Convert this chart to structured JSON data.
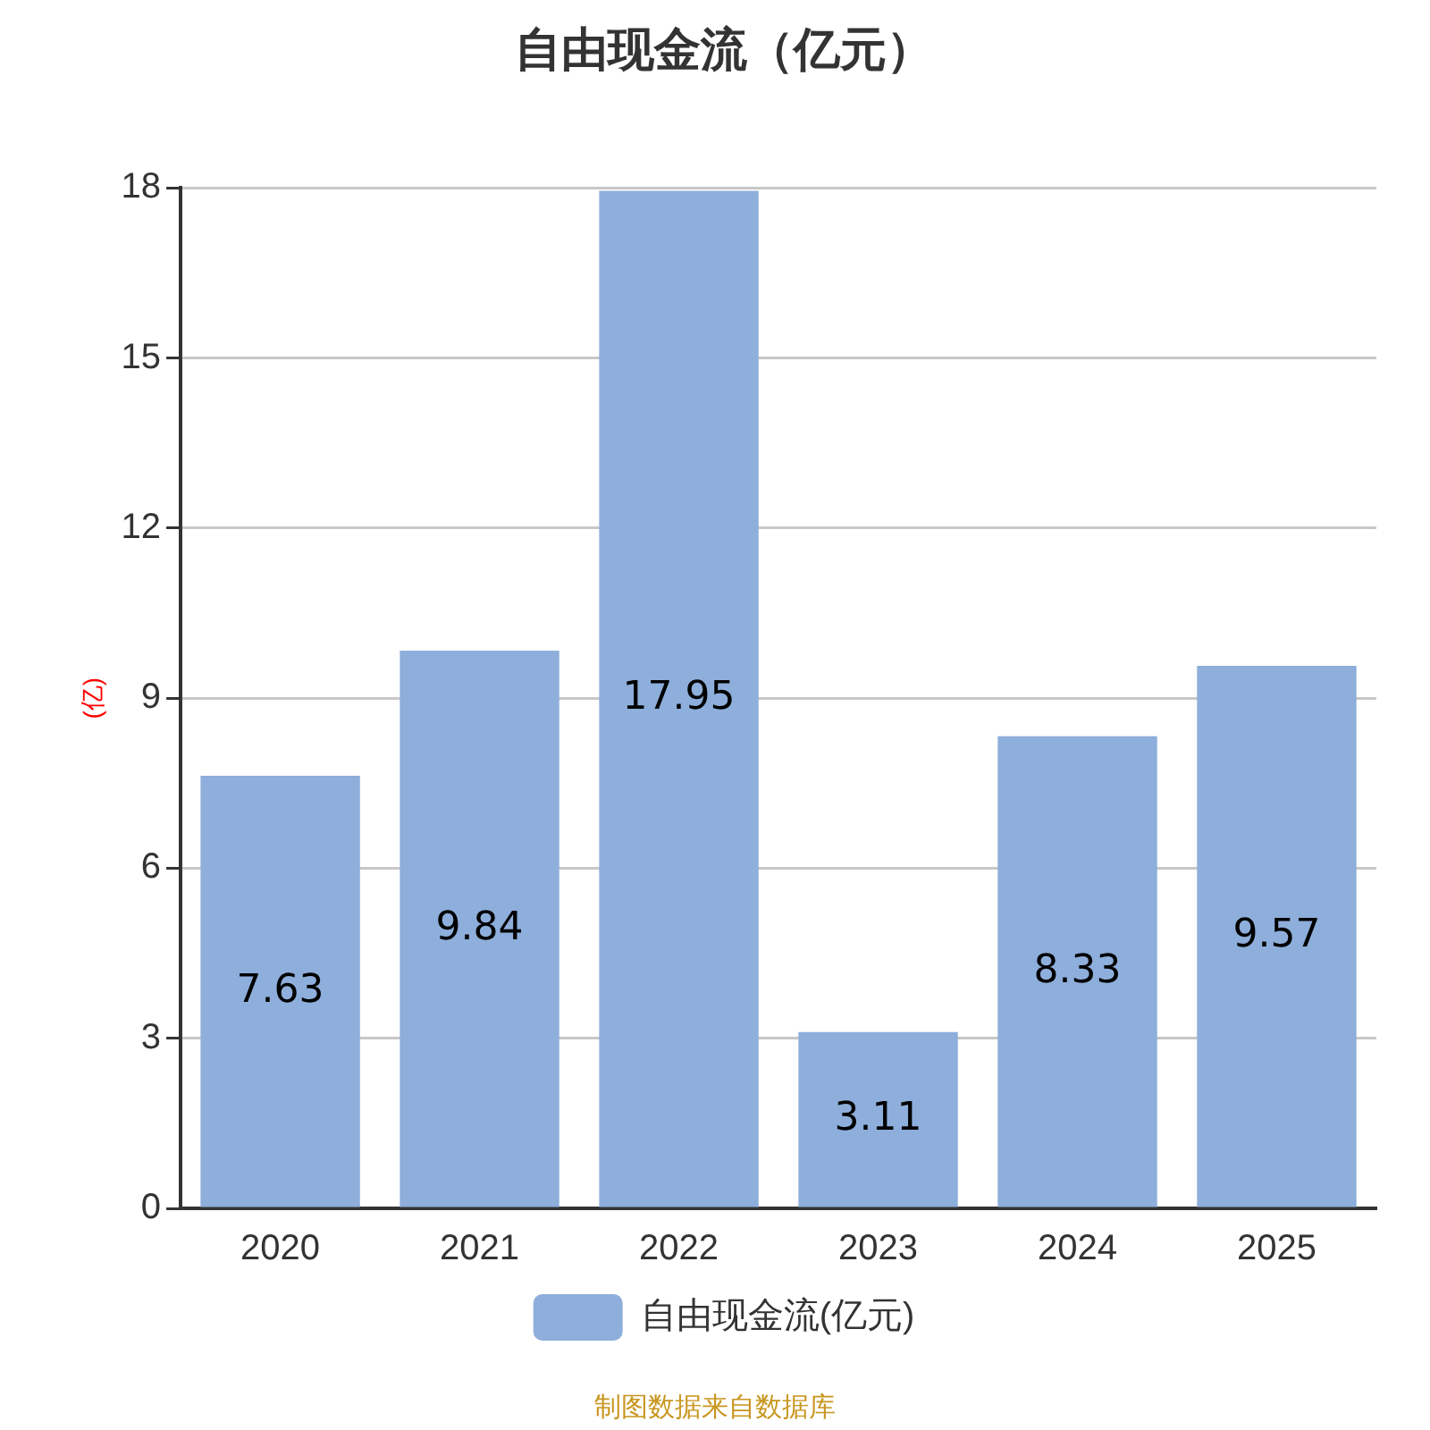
{
  "chart_data": {
    "type": "bar",
    "title": "自由现金流（亿元）",
    "ylabel": "(亿)",
    "categories": [
      "2020",
      "2021",
      "2022",
      "2023",
      "2024",
      "2025"
    ],
    "series": [
      {
        "name": "自由现金流(亿元)",
        "color": "#8eaedb",
        "values": [
          7.63,
          9.84,
          17.95,
          3.11,
          8.33,
          9.57
        ]
      }
    ],
    "ylim": [
      0,
      18
    ],
    "yticks": [
      0,
      3,
      6,
      9,
      12,
      15,
      18
    ],
    "grid": "y",
    "legend": "bottom",
    "data_labels": true,
    "annotations": [
      "制图数据来自数据库"
    ]
  }
}
